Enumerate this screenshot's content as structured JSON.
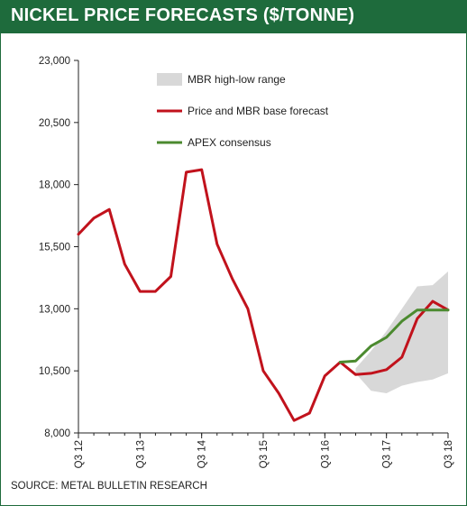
{
  "header": {
    "title": "NICKEL PRICE FORECASTS ($/TONNE)"
  },
  "footer": {
    "source": "SOURCE:  METAL BULLETIN RESEARCH"
  },
  "colors": {
    "header_bg": "#1e6b3c",
    "price": "#c1121c",
    "apex": "#4b8a2f",
    "range": "#d8d8d8"
  },
  "chart_data": {
    "type": "line",
    "title": "NICKEL PRICE FORECASTS ($/TONNE)",
    "ylim": [
      8000,
      23000
    ],
    "yticks": [
      8000,
      10500,
      13000,
      15500,
      18000,
      20500,
      23000
    ],
    "ytick_labels": [
      "8,000",
      "10,500",
      "13,000",
      "15,500",
      "18,000",
      "20,500",
      "23,000"
    ],
    "xlim": [
      0,
      24
    ],
    "xticks": [
      0,
      4,
      8,
      12,
      16,
      20,
      24
    ],
    "xtick_labels": [
      "Q3 12",
      "Q3 13",
      "Q3 14",
      "Q3 15",
      "Q3 16",
      "Q3 17",
      "Q3 18"
    ],
    "legend_position": "top-center",
    "grid": false,
    "series": [
      {
        "name": "MBR high-low range",
        "kind": "band",
        "x": [
          18,
          19,
          20,
          21,
          22,
          23,
          24
        ],
        "low": [
          10400,
          9700,
          9600,
          9900,
          10050,
          10150,
          10400
        ],
        "high": [
          10600,
          11300,
          12100,
          13000,
          13900,
          13950,
          14500
        ]
      },
      {
        "name": "Price and MBR base forecast",
        "kind": "line",
        "x": [
          0,
          1,
          2,
          3,
          4,
          5,
          6,
          7,
          8,
          9,
          10,
          11,
          12,
          13,
          14,
          15,
          16,
          17,
          18,
          19,
          20,
          21,
          22,
          23,
          24
        ],
        "values": [
          16000,
          16650,
          17000,
          14800,
          13700,
          13700,
          14300,
          18500,
          18600,
          15600,
          14200,
          13000,
          10500,
          9600,
          8500,
          8800,
          10300,
          10850,
          10350,
          10400,
          10550,
          11050,
          12600,
          13300,
          12950
        ]
      },
      {
        "name": "APEX consensus",
        "kind": "line",
        "x": [
          17,
          18,
          19,
          20,
          21,
          22,
          23,
          24
        ],
        "values": [
          10850,
          10900,
          11500,
          11850,
          12500,
          12950,
          12950,
          12950
        ]
      }
    ]
  }
}
